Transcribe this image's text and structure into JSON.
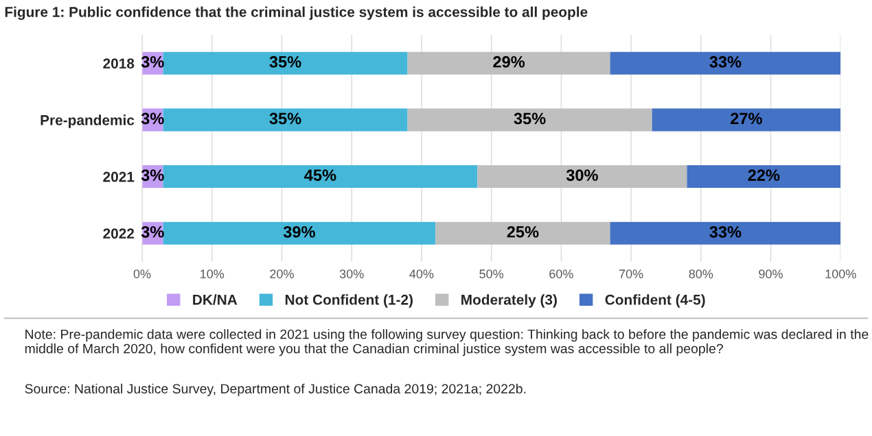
{
  "chart_data": {
    "type": "bar",
    "orientation": "horizontal",
    "stacked": true,
    "title": "Figure 1: Public confidence that the criminal justice system is accessible to all people",
    "categories": [
      "2018",
      "Pre-pandemic",
      "2021",
      "2022"
    ],
    "series": [
      {
        "name": "DK/NA",
        "color": "#c39cf4",
        "values": [
          3,
          3,
          3,
          3
        ]
      },
      {
        "name": "Not Confident (1-2)",
        "color": "#45b7d9",
        "values": [
          35,
          35,
          45,
          39
        ]
      },
      {
        "name": "Moderately (3)",
        "color": "#bfbfbf",
        "values": [
          29,
          35,
          30,
          25
        ]
      },
      {
        "name": "Confident (4-5)",
        "color": "#4472c4",
        "values": [
          33,
          27,
          22,
          33
        ]
      }
    ],
    "xlim": [
      0,
      100
    ],
    "xticks": [
      {
        "value": 0,
        "label": "0%"
      },
      {
        "value": 10,
        "label": "10%"
      },
      {
        "value": 20,
        "label": "20%"
      },
      {
        "value": 30,
        "label": "30%"
      },
      {
        "value": 40,
        "label": "40%"
      },
      {
        "value": 50,
        "label": "50%"
      },
      {
        "value": 60,
        "label": "60%"
      },
      {
        "value": 70,
        "label": "70%"
      },
      {
        "value": 80,
        "label": "80%"
      },
      {
        "value": 90,
        "label": "90%"
      },
      {
        "value": 100,
        "label": "100%"
      }
    ],
    "grid": "x",
    "legend": "bottom",
    "value_labels": [
      [
        "3%",
        "3%",
        "3%",
        "3%"
      ],
      [
        "35%",
        "35%",
        "45%",
        "39%"
      ],
      [
        "29%",
        "35%",
        "30%",
        "25%"
      ],
      [
        "33%",
        "27%",
        "22%",
        "33%"
      ]
    ],
    "annotations": [
      "Note: Pre-pandemic data were collected in 2021 using the following survey question: Thinking back to before the pandemic was declared in the middle of March 2020, how confident were you that the Canadian criminal justice system was accessible to all people?",
      "Source: National Justice Survey, Department of Justice Canada 2019; 2021a; 2022b."
    ]
  }
}
